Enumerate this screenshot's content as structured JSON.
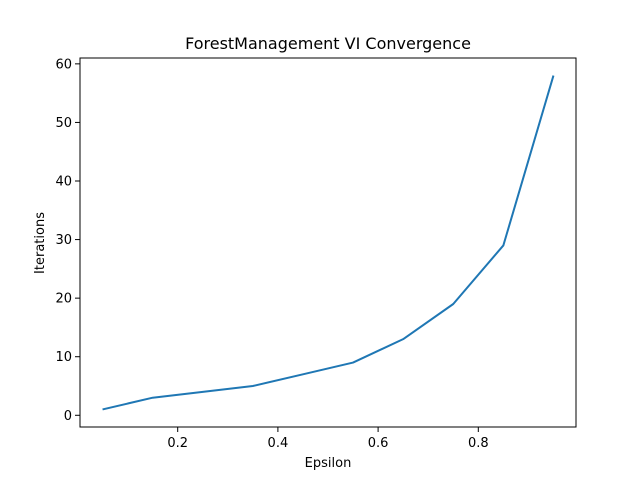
{
  "chart_data": {
    "type": "line",
    "title": "ForestManagement VI Convergence",
    "xlabel": "Epsilon",
    "ylabel": "Iterations",
    "xlim": [
      0.005,
      0.995
    ],
    "ylim": [
      -2,
      61
    ],
    "x_ticks": [
      0.2,
      0.4,
      0.6,
      0.8
    ],
    "x_tick_labels": [
      "0.2",
      "0.4",
      "0.6",
      "0.8"
    ],
    "y_ticks": [
      0,
      10,
      20,
      30,
      40,
      50,
      60
    ],
    "y_tick_labels": [
      "0",
      "10",
      "20",
      "30",
      "40",
      "50",
      "60"
    ],
    "grid": false,
    "legend": "none",
    "series": [
      {
        "color": "#1f77b4",
        "x": [
          0.05,
          0.15,
          0.25,
          0.35,
          0.45,
          0.55,
          0.65,
          0.75,
          0.85,
          0.95
        ],
        "y": [
          1,
          3,
          4,
          5,
          7,
          9,
          13,
          19,
          29,
          58
        ]
      }
    ]
  }
}
